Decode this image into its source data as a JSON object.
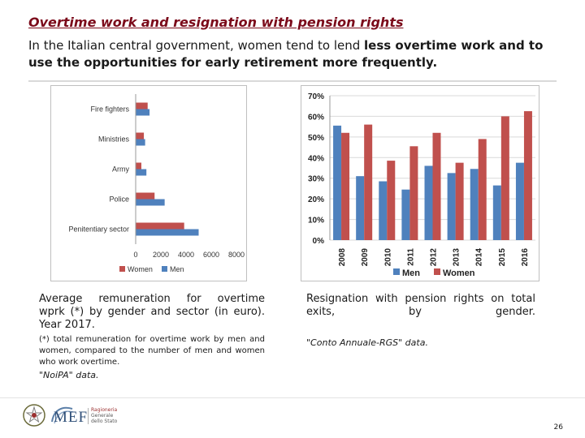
{
  "header": {
    "title": "Overtime work and resignation with pension rights",
    "subtitle_parts": [
      "In the Italian central government, women tend to lend ",
      "less overtime work and to use the opportunities for early retirement more frequently."
    ]
  },
  "colors": {
    "men": "#4f81bd",
    "women": "#c0504d",
    "title": "#7b0a1a"
  },
  "chart_data": [
    {
      "type": "bar",
      "orientation": "horizontal",
      "categories": [
        "Fire fighters",
        "Ministries",
        "Army",
        "Police",
        "Penitentiary sector"
      ],
      "series": [
        {
          "name": "Women",
          "values": [
            950,
            650,
            450,
            1500,
            3850
          ]
        },
        {
          "name": "Men",
          "values": [
            1100,
            750,
            850,
            2300,
            5000
          ]
        }
      ],
      "xlim": [
        0,
        8000
      ],
      "xticks": [
        "0",
        "2000",
        "4000",
        "6000",
        "8000"
      ],
      "legend": "bottom"
    },
    {
      "type": "bar",
      "orientation": "vertical",
      "categories": [
        "2008",
        "2009",
        "2010",
        "2011",
        "2012",
        "2013",
        "2014",
        "2015",
        "2016"
      ],
      "series": [
        {
          "name": "Men",
          "values": [
            55.5,
            31,
            28.5,
            24.5,
            36,
            32.5,
            34.5,
            26.5,
            37.5
          ]
        },
        {
          "name": "Women",
          "values": [
            52,
            56,
            38.5,
            45.5,
            52,
            37.5,
            49,
            60,
            62.5
          ]
        }
      ],
      "ylim": [
        0,
        70
      ],
      "yticks": [
        "0%",
        "10%",
        "20%",
        "30%",
        "40%",
        "50%",
        "60%",
        "70%"
      ],
      "legend": "bottom"
    }
  ],
  "left_caption": {
    "lines": [
      "Average remuneration for overtime",
      "wprk (*) by gender and sector (in euro).",
      "Year 2017."
    ],
    "note_lines": [
      "(*) total remuneration for overtime work by men and",
      "women, compared to the number of men and women",
      "who work overtime."
    ],
    "source": "\"NoiPA\" data."
  },
  "right_caption": {
    "lines": [
      "Resignation with pension rights on total",
      "exits, by gender."
    ],
    "source": "\"Conto Annuale-RGS\" data."
  },
  "footer": {
    "logo_text": "MEF",
    "ministry_lines": [
      "Ragioneria",
      "Generale",
      "dello Stato"
    ],
    "page_number": "26"
  }
}
